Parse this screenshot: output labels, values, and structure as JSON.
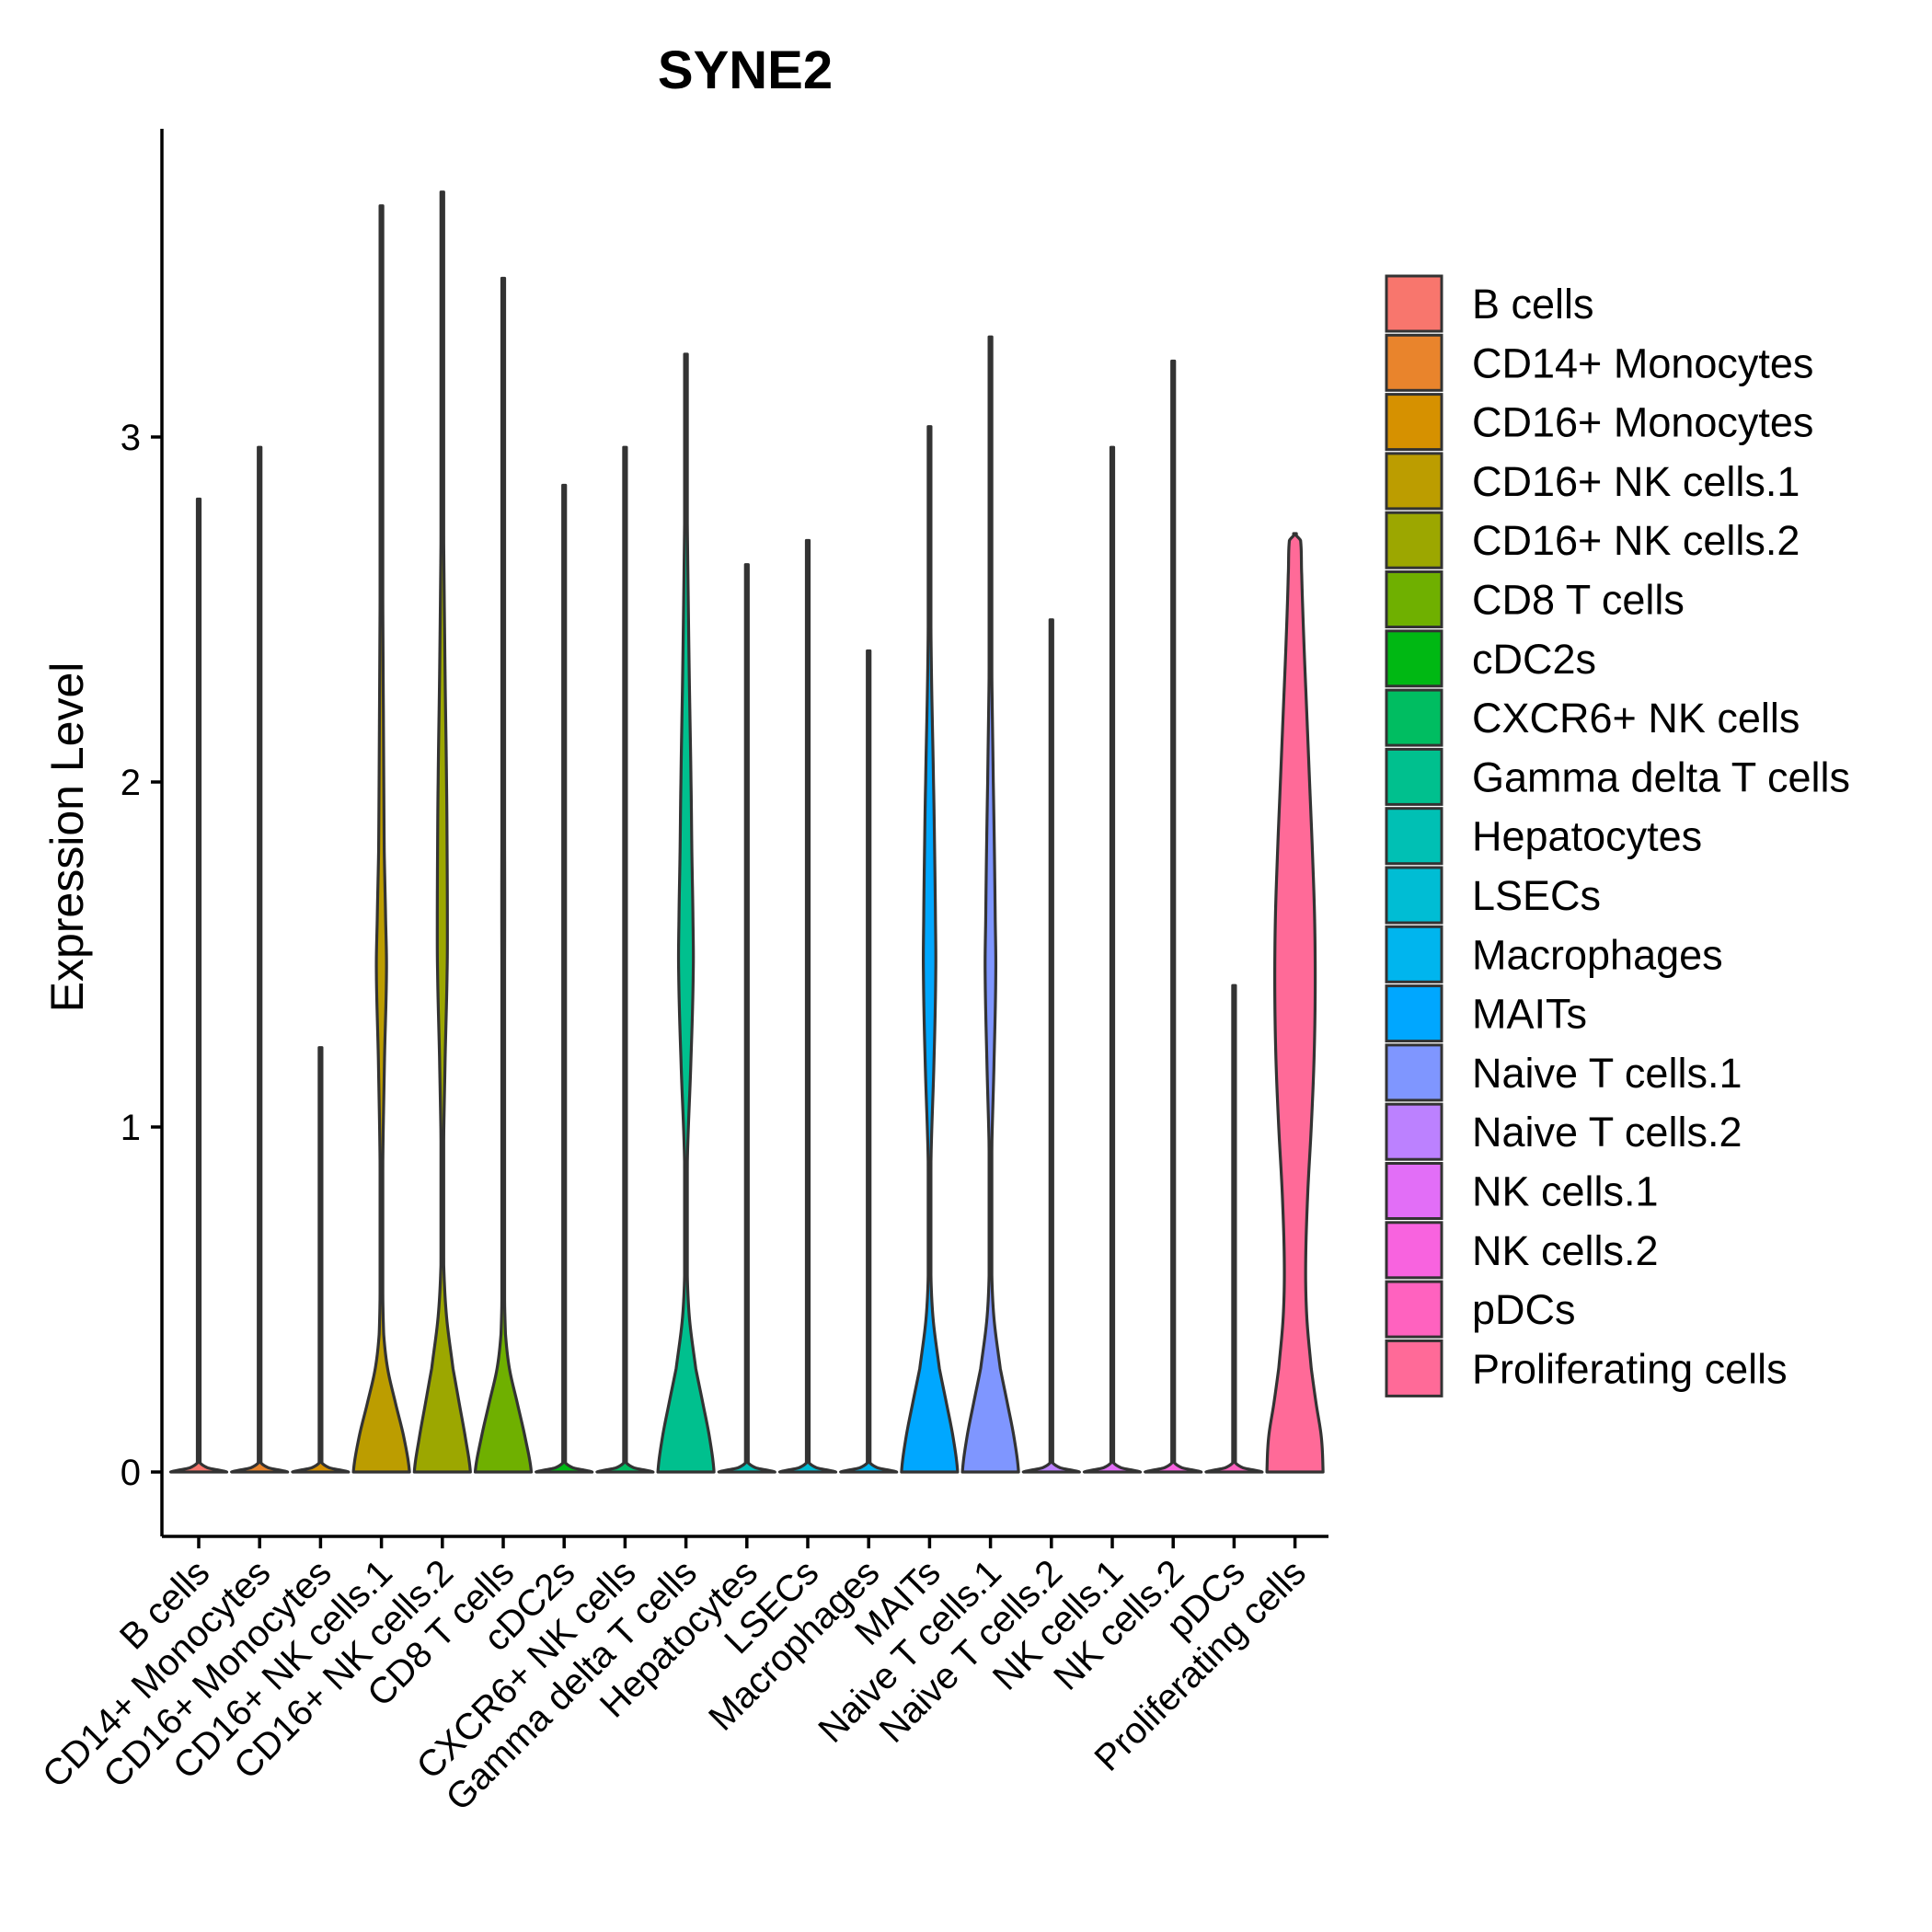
{
  "chart_data": {
    "type": "violin",
    "title": "SYNE2",
    "xlabel": "",
    "ylabel": "Expression Level",
    "ylim": [
      -0.18,
      3.85
    ],
    "yticks": [
      0,
      1,
      2,
      3
    ],
    "legend_position": "right",
    "categories": [
      "B cells",
      "CD14+ Monocytes",
      "CD16+ Monocytes",
      "CD16+ NK cells.1",
      "CD16+ NK cells.2",
      "CD8 T cells",
      "cDC2s",
      "CXCR6+ NK cells",
      "Gamma delta T cells",
      "Hepatocytes",
      "LSECs",
      "Macrophages",
      "MAITs",
      "Naive T cells.1",
      "Naive T cells.2",
      "NK cells.1",
      "NK cells.2",
      "pDCs",
      "Proliferating cells"
    ],
    "series": [
      {
        "name": "B cells",
        "color": "#F8766D",
        "max": 2.82,
        "profile": []
      },
      {
        "name": "CD14+ Monocytes",
        "color": "#E9842C",
        "max": 2.97,
        "profile": []
      },
      {
        "name": "CD16+ Monocytes",
        "color": "#D69100",
        "max": 1.23,
        "profile": []
      },
      {
        "name": "CD16+ NK cells.1",
        "color": "#BC9D00",
        "max": 3.67,
        "profile": [
          [
            0,
            1.0
          ],
          [
            0.1,
            0.8
          ],
          [
            0.2,
            0.5
          ],
          [
            0.3,
            0.22
          ],
          [
            0.4,
            0.08
          ],
          [
            0.6,
            0.04
          ],
          [
            0.9,
            0.05
          ],
          [
            1.2,
            0.11
          ],
          [
            1.45,
            0.18
          ],
          [
            1.6,
            0.15
          ],
          [
            1.8,
            0.1
          ],
          [
            2.2,
            0.07
          ],
          [
            2.5,
            0.05
          ],
          [
            2.8,
            0.03
          ],
          [
            3.2,
            0.02
          ],
          [
            3.67,
            0
          ]
        ]
      },
      {
        "name": "CD16+ NK cells.2",
        "color": "#9CA700",
        "max": 3.71,
        "profile": [
          [
            0,
            1.0
          ],
          [
            0.1,
            0.82
          ],
          [
            0.2,
            0.6
          ],
          [
            0.3,
            0.38
          ],
          [
            0.45,
            0.15
          ],
          [
            0.6,
            0.05
          ],
          [
            0.9,
            0.04
          ],
          [
            1.2,
            0.1
          ],
          [
            1.45,
            0.17
          ],
          [
            1.6,
            0.18
          ],
          [
            1.8,
            0.17
          ],
          [
            2.0,
            0.15
          ],
          [
            2.3,
            0.1
          ],
          [
            2.6,
            0.06
          ],
          [
            2.9,
            0.03
          ],
          [
            3.3,
            0.015
          ],
          [
            3.71,
            0
          ]
        ]
      },
      {
        "name": "CD8 T cells",
        "color": "#6FB000",
        "max": 3.46,
        "profile": [
          [
            0,
            1.0
          ],
          [
            0.1,
            0.78
          ],
          [
            0.2,
            0.5
          ],
          [
            0.3,
            0.22
          ],
          [
            0.4,
            0.08
          ],
          [
            0.6,
            0.03
          ],
          [
            0.9,
            0.02
          ],
          [
            1.2,
            0.03
          ],
          [
            1.5,
            0.05
          ],
          [
            1.8,
            0.05
          ],
          [
            2.2,
            0.03
          ],
          [
            2.6,
            0.02
          ],
          [
            3.0,
            0.01
          ],
          [
            3.46,
            0
          ]
        ]
      },
      {
        "name": "cDC2s",
        "color": "#00B813",
        "max": 2.86,
        "profile": []
      },
      {
        "name": "CXCR6+ NK cells",
        "color": "#00BD61",
        "max": 2.97,
        "profile": []
      },
      {
        "name": "Gamma delta T cells",
        "color": "#00C08E",
        "max": 3.24,
        "profile": [
          [
            0,
            1.0
          ],
          [
            0.1,
            0.84
          ],
          [
            0.2,
            0.6
          ],
          [
            0.3,
            0.35
          ],
          [
            0.45,
            0.12
          ],
          [
            0.6,
            0.04
          ],
          [
            0.9,
            0.05
          ],
          [
            1.2,
            0.18
          ],
          [
            1.45,
            0.26
          ],
          [
            1.6,
            0.25
          ],
          [
            1.8,
            0.21
          ],
          [
            2.0,
            0.18
          ],
          [
            2.3,
            0.12
          ],
          [
            2.6,
            0.07
          ],
          [
            2.9,
            0.03
          ],
          [
            3.24,
            0
          ]
        ]
      },
      {
        "name": "Hepatocytes",
        "color": "#00C0B4",
        "max": 2.63,
        "profile": []
      },
      {
        "name": "LSECs",
        "color": "#00BDD4",
        "max": 2.7,
        "profile": []
      },
      {
        "name": "Macrophages",
        "color": "#00B5EE",
        "max": 2.38,
        "profile": []
      },
      {
        "name": "MAITs",
        "color": "#00A7FF",
        "max": 3.03,
        "profile": [
          [
            0,
            1.0
          ],
          [
            0.1,
            0.84
          ],
          [
            0.2,
            0.6
          ],
          [
            0.3,
            0.35
          ],
          [
            0.45,
            0.12
          ],
          [
            0.6,
            0.04
          ],
          [
            0.9,
            0.05
          ],
          [
            1.2,
            0.16
          ],
          [
            1.45,
            0.22
          ],
          [
            1.6,
            0.21
          ],
          [
            1.8,
            0.18
          ],
          [
            2.0,
            0.14
          ],
          [
            2.3,
            0.07
          ],
          [
            2.6,
            0.03
          ],
          [
            3.03,
            0
          ]
        ]
      },
      {
        "name": "Naive T cells.1",
        "color": "#7F96FF",
        "max": 3.29,
        "profile": [
          [
            0,
            1.0
          ],
          [
            0.1,
            0.84
          ],
          [
            0.2,
            0.6
          ],
          [
            0.3,
            0.35
          ],
          [
            0.45,
            0.12
          ],
          [
            0.6,
            0.04
          ],
          [
            0.9,
            0.04
          ],
          [
            1.2,
            0.13
          ],
          [
            1.45,
            0.19
          ],
          [
            1.6,
            0.17
          ],
          [
            1.8,
            0.14
          ],
          [
            2.0,
            0.1
          ],
          [
            2.3,
            0.05
          ],
          [
            2.6,
            0.02
          ],
          [
            3.29,
            0
          ]
        ]
      },
      {
        "name": "Naive T cells.2",
        "color": "#BC81FF",
        "max": 2.47,
        "profile": []
      },
      {
        "name": "NK cells.1",
        "color": "#E26EF7",
        "max": 2.97,
        "profile": []
      },
      {
        "name": "NK cells.2",
        "color": "#F863DF",
        "max": 3.22,
        "profile": []
      },
      {
        "name": "pDCs",
        "color": "#FF62BF",
        "max": 1.41,
        "profile": []
      },
      {
        "name": "Proliferating cells",
        "color": "#FF6A98",
        "max": 2.72,
        "profile": [
          [
            0,
            1.0
          ],
          [
            0.1,
            0.94
          ],
          [
            0.2,
            0.75
          ],
          [
            0.3,
            0.58
          ],
          [
            0.45,
            0.42
          ],
          [
            0.6,
            0.38
          ],
          [
            0.8,
            0.45
          ],
          [
            1.0,
            0.58
          ],
          [
            1.2,
            0.68
          ],
          [
            1.4,
            0.72
          ],
          [
            1.6,
            0.7
          ],
          [
            1.8,
            0.62
          ],
          [
            2.0,
            0.52
          ],
          [
            2.2,
            0.42
          ],
          [
            2.4,
            0.32
          ],
          [
            2.6,
            0.24
          ],
          [
            2.7,
            0.2
          ],
          [
            2.72,
            0
          ]
        ]
      }
    ]
  }
}
